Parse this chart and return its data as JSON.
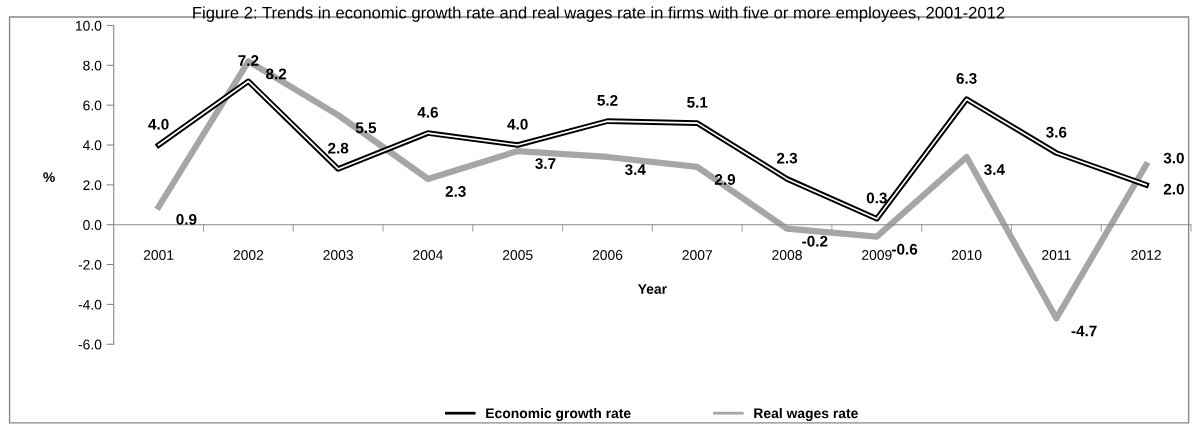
{
  "chart_data": {
    "type": "line",
    "title": "Figure 2: Trends in economic growth rate and real wages rate in firms with five or more employees, 2001-2012",
    "xlabel": "Year",
    "ylabel": "%",
    "categories": [
      "2001",
      "2002",
      "2003",
      "2004",
      "2005",
      "2006",
      "2007",
      "2008",
      "2009",
      "2010",
      "2011",
      "2012"
    ],
    "series": [
      {
        "name": "Economic growth rate",
        "color": "#000000",
        "values": [
          4.0,
          7.2,
          2.8,
          4.6,
          4.0,
          5.2,
          5.1,
          2.3,
          0.3,
          6.3,
          3.6,
          2.0
        ],
        "value_labels": [
          "4.0",
          "7.2",
          "2.8",
          "4.6",
          "4.0",
          "5.2",
          "5.1",
          "2.3",
          "0.3",
          "6.3",
          "3.6",
          "2.0"
        ]
      },
      {
        "name": "Real wages rate",
        "color": "#a6a6a6",
        "values": [
          0.9,
          8.2,
          5.5,
          2.3,
          3.7,
          3.4,
          2.9,
          -0.2,
          -0.6,
          3.4,
          -4.7,
          3.0
        ],
        "value_labels": [
          "0.9",
          "8.2",
          "5.5",
          "2.3",
          "3.7",
          "3.4",
          "2.9",
          "-0.2",
          "-0.6",
          "3.4",
          "-4.7",
          "3.0"
        ]
      }
    ],
    "ylim": [
      -6,
      10
    ],
    "yticks": [
      {
        "value": -6,
        "label": "-6.0"
      },
      {
        "value": -4,
        "label": "-4.0"
      },
      {
        "value": -2,
        "label": "-2.0"
      },
      {
        "value": 0,
        "label": "0.0"
      },
      {
        "value": 2,
        "label": "2.0"
      },
      {
        "value": 4,
        "label": "4.0"
      },
      {
        "value": 6,
        "label": "6.0"
      },
      {
        "value": 8,
        "label": "8.0"
      },
      {
        "value": 10,
        "label": "10.0"
      }
    ],
    "legend": "bottom",
    "grid": false,
    "marker": "none",
    "line_style": "solid"
  }
}
